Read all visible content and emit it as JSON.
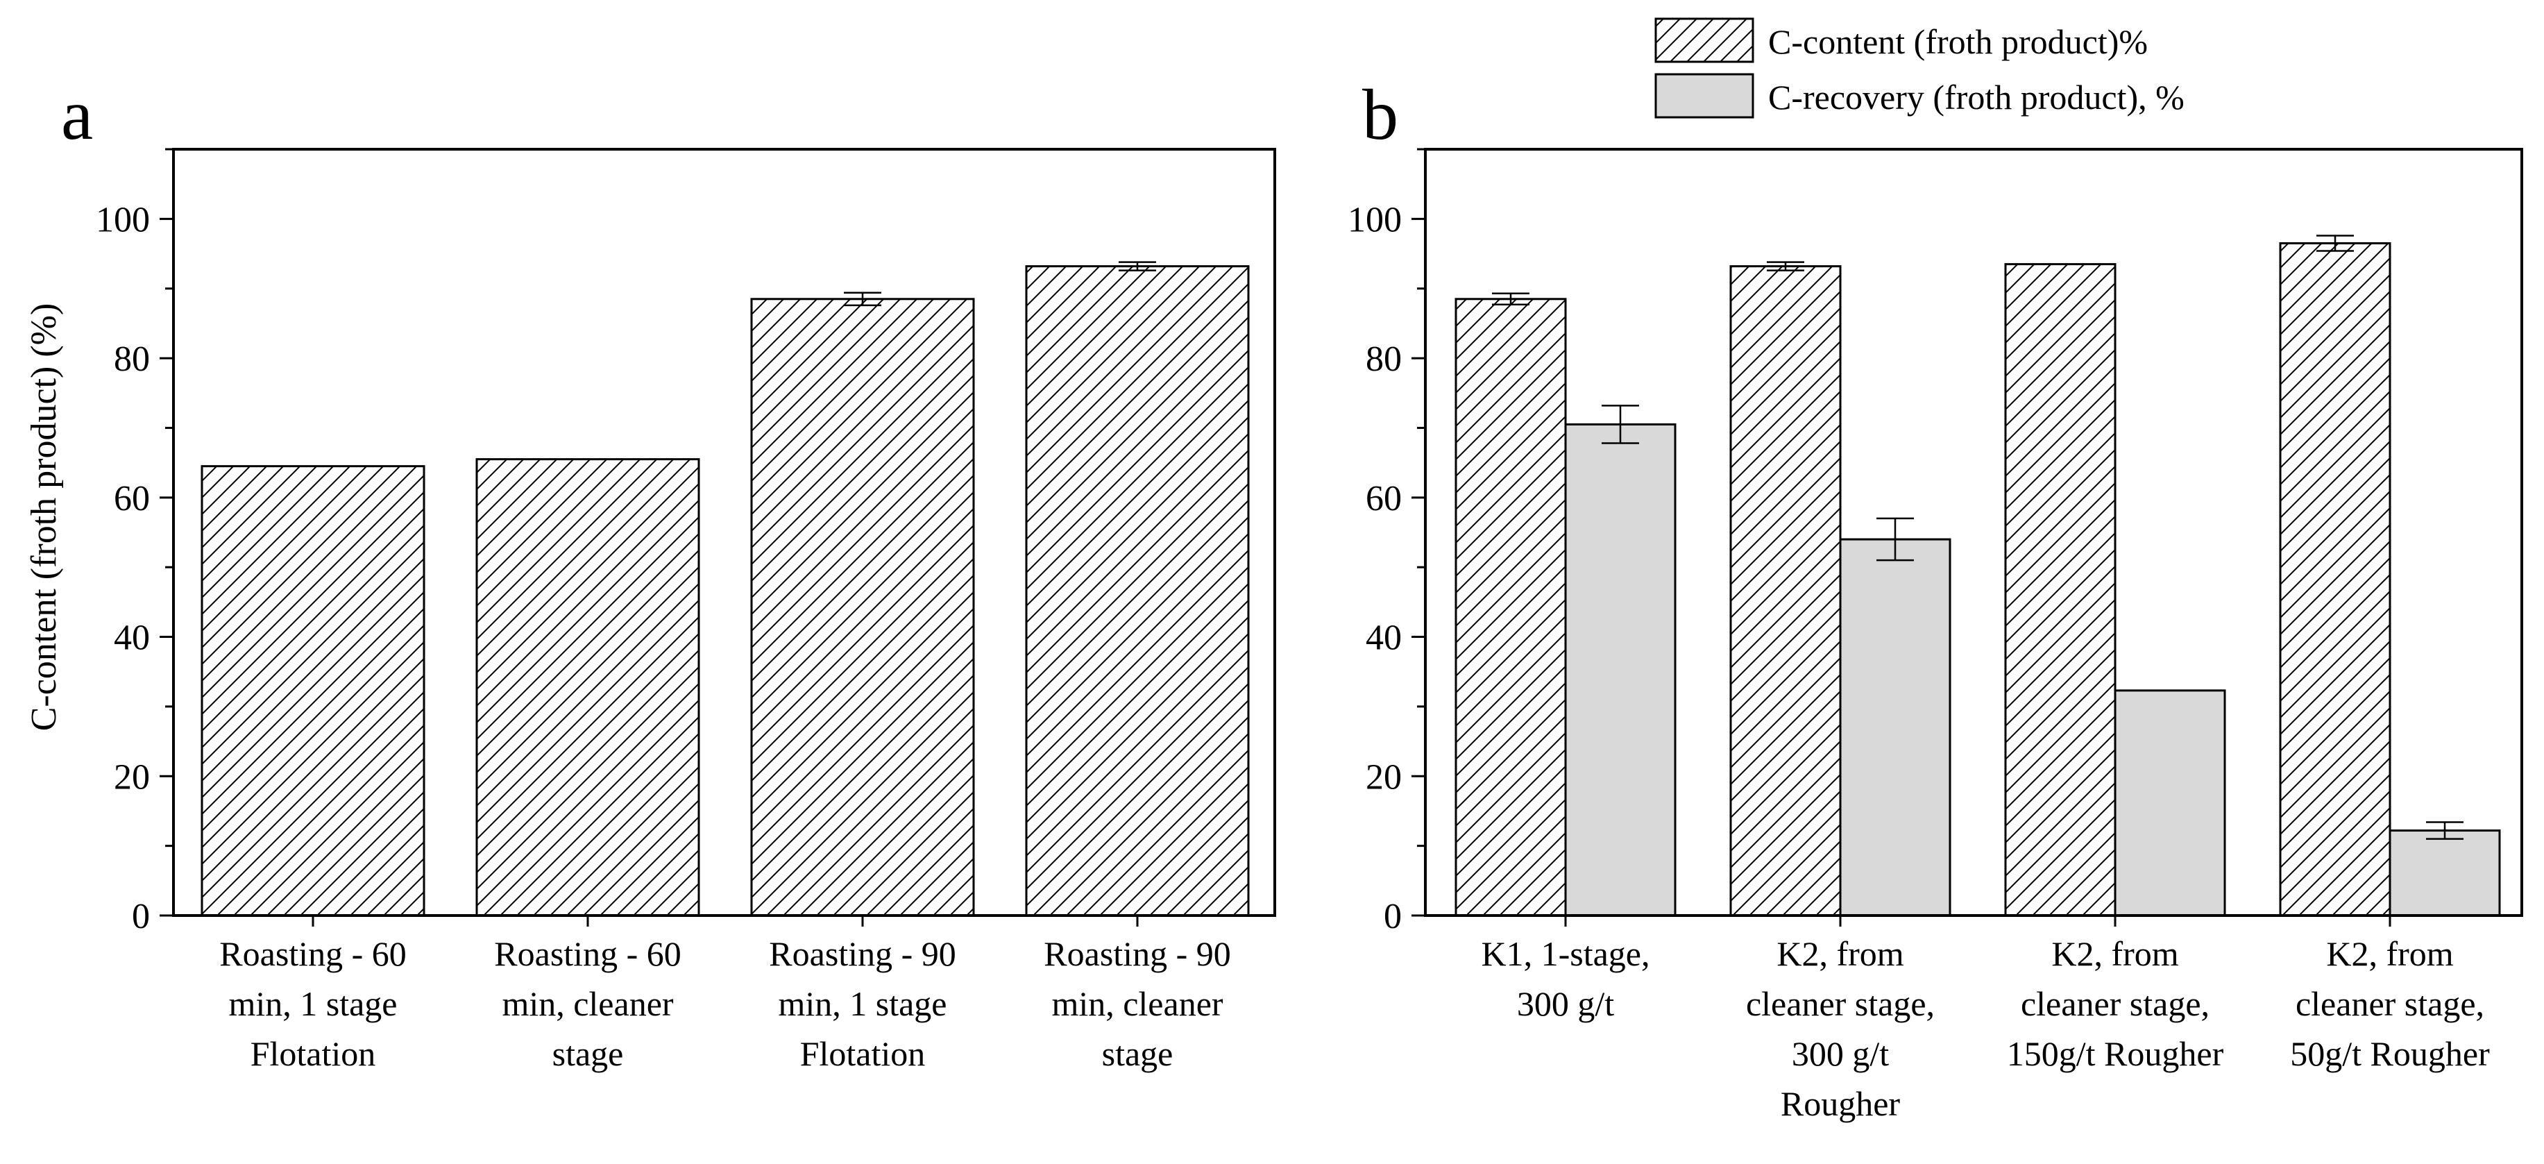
{
  "legend": {
    "items": [
      {
        "label": "C-content (froth product)%",
        "pattern": "hatch"
      },
      {
        "label": "C-recovery (froth product), %",
        "pattern": "gray"
      }
    ]
  },
  "colors": {
    "bar_fill_gray": "#d9d9d9",
    "stroke": "#000000",
    "background": "#ffffff"
  },
  "chart_data": [
    {
      "panel": "a",
      "type": "bar",
      "ylabel": "C-content (froth product) (%)",
      "xlabel": "",
      "ylim": [
        0,
        110
      ],
      "yticks": [
        0,
        20,
        40,
        60,
        80,
        100
      ],
      "categories": [
        [
          "Roasting - 60",
          "min, 1 stage",
          "Flotation"
        ],
        [
          "Roasting - 60",
          "min, cleaner",
          "stage"
        ],
        [
          "Roasting - 90",
          "min, 1 stage",
          "Flotation"
        ],
        [
          "Roasting - 90",
          "min, cleaner",
          "stage"
        ]
      ],
      "series": [
        {
          "name": "C-content (froth product)%",
          "pattern": "hatch",
          "values": [
            64.5,
            65.5,
            88.5,
            93.2
          ],
          "errors": [
            0,
            0,
            0.9,
            0.6
          ]
        }
      ]
    },
    {
      "panel": "b",
      "type": "bar",
      "ylabel": "",
      "xlabel": "",
      "ylim": [
        0,
        110
      ],
      "yticks": [
        0,
        20,
        40,
        60,
        80,
        100
      ],
      "categories": [
        [
          "K1, 1-stage,",
          "300 g/t"
        ],
        [
          "K2, from",
          "cleaner stage,",
          "300 g/t",
          "Rougher"
        ],
        [
          "K2, from",
          "cleaner stage,",
          "150g/t Rougher"
        ],
        [
          "K2, from",
          "cleaner stage,",
          "50g/t Rougher"
        ]
      ],
      "series": [
        {
          "name": "C-content (froth product)%",
          "pattern": "hatch",
          "values": [
            88.5,
            93.2,
            93.5,
            96.5
          ],
          "errors": [
            0.8,
            0.6,
            0,
            1.1
          ]
        },
        {
          "name": "C-recovery (froth product), %",
          "pattern": "gray",
          "values": [
            70.5,
            54.0,
            32.3,
            12.2
          ],
          "errors": [
            2.7,
            3.0,
            0,
            1.2
          ]
        }
      ]
    }
  ]
}
